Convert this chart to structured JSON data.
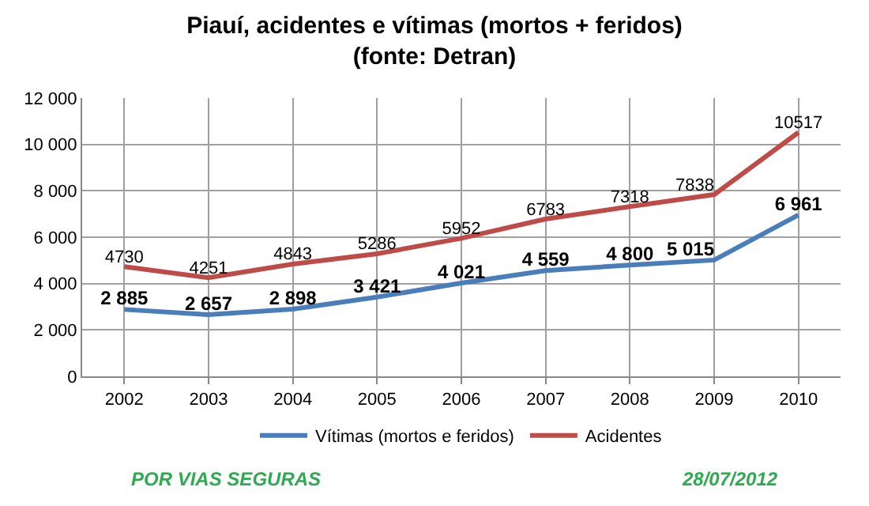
{
  "chart_data": {
    "type": "line",
    "title": "Piauí, acidentes e vítimas (mortos + feridos)\n(fonte: Detran)",
    "categories": [
      "2002",
      "2003",
      "2004",
      "2005",
      "2006",
      "2007",
      "2008",
      "2009",
      "2010"
    ],
    "series": [
      {
        "name": "Vítimas (mortos e feridos)",
        "color": "#4a7ebb",
        "values": [
          2885,
          2657,
          2898,
          3421,
          4021,
          4559,
          4800,
          5015,
          6961
        ],
        "value_labels": [
          "2 885",
          "2 657",
          "2 898",
          "3 421",
          "4 021",
          "4 559",
          "4 800",
          "5 015",
          "6 961"
        ]
      },
      {
        "name": "Acidentes",
        "color": "#be4b48",
        "values": [
          4730,
          4251,
          4843,
          5286,
          5952,
          6783,
          7318,
          7838,
          10517
        ],
        "data_labels": true
      }
    ],
    "ylim": [
      0,
      12000
    ],
    "yticks": [
      {
        "value": 0,
        "label": "0"
      },
      {
        "value": 2000,
        "label": "2 000"
      },
      {
        "value": 4000,
        "label": "4 000"
      },
      {
        "value": 6000,
        "label": "6 000"
      },
      {
        "value": 8000,
        "label": "8 000"
      },
      {
        "value": 10000,
        "label": "10 000"
      },
      {
        "value": 12000,
        "label": "12 000"
      }
    ],
    "grid": true,
    "legend": "bottom",
    "marker": "none",
    "line_style": "solid",
    "annotations": [
      "POR VIAS SEGURAS",
      "28/07/2012"
    ]
  }
}
